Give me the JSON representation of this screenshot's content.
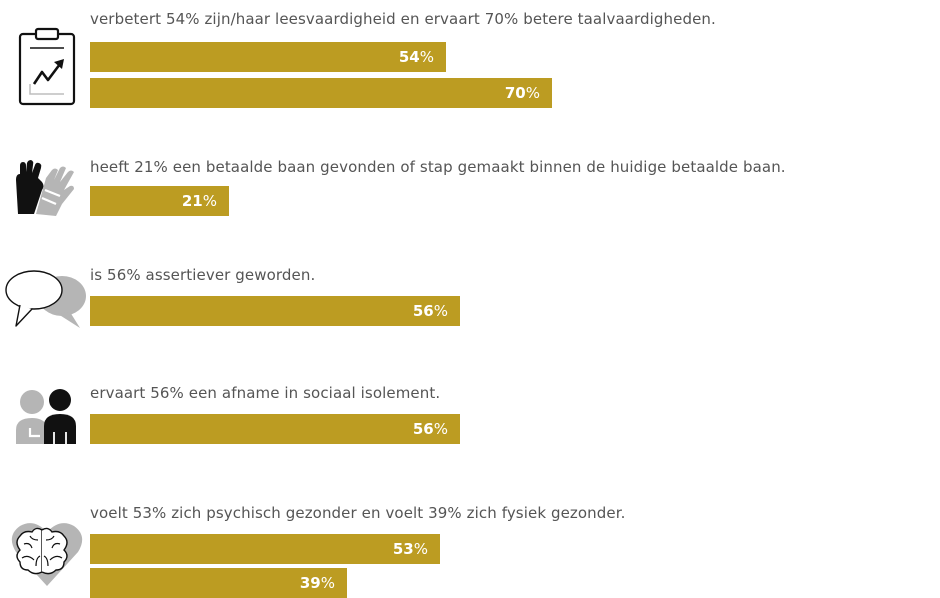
{
  "colors": {
    "bar": "#bc9c22",
    "icon_gray": "#b5b5b5",
    "icon_dark": "#111111",
    "text": "#555555"
  },
  "chart_data": {
    "type": "bar",
    "orientation": "horizontal",
    "value_max": 100,
    "value_suffix": "%",
    "groups": [
      {
        "text": "verbetert 54% zijn/haar leesvaardigheid en ervaart 70% betere taalvaardigheden.",
        "icon": "clipboard-chart-icon",
        "values": [
          54,
          70
        ]
      },
      {
        "text": "heeft 21% een betaalde baan gevonden of stap gemaakt binnen de huidige betaalde baan.",
        "icon": "work-gloves-icon",
        "values": [
          21
        ]
      },
      {
        "text": "is 56% assertiever geworden.",
        "icon": "speech-bubbles-icon",
        "values": [
          56
        ]
      },
      {
        "text": "ervaart 56% een afname in sociaal isolement.",
        "icon": "people-icon",
        "values": [
          56
        ]
      },
      {
        "text": "voelt 53% zich psychisch gezonder en voelt 39% zich fysiek gezonder.",
        "icon": "brain-heart-icon",
        "values": [
          53,
          39
        ]
      }
    ]
  }
}
